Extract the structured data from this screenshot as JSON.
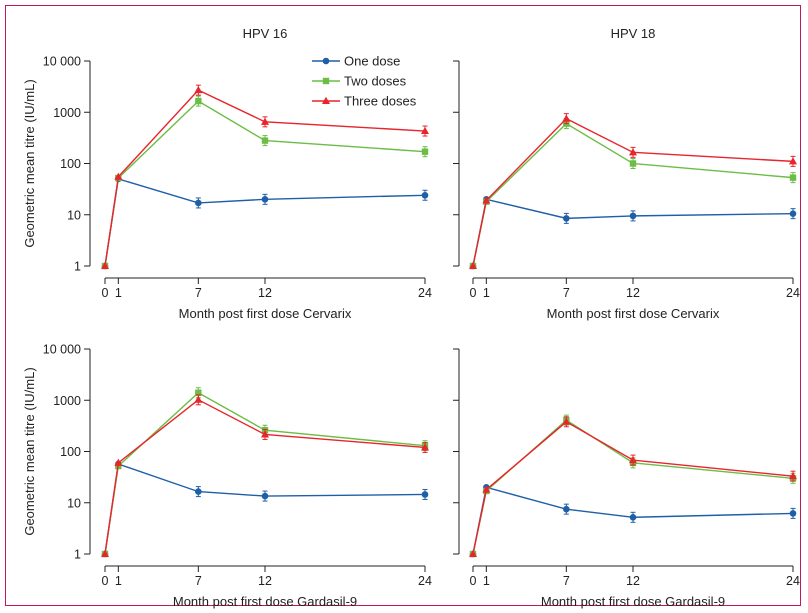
{
  "colors": {
    "one_dose": "#1f5fa8",
    "two_doses": "#6cbd45",
    "three_doses": "#e8242c",
    "frame": "#c2185b"
  },
  "legend": {
    "one": "One dose",
    "two": "Two doses",
    "three": "Three doses"
  },
  "chart_data": [
    {
      "type": "line",
      "title": "HPV 16",
      "xlabel": "Month post first dose Cervarix",
      "ylabel": "Geometric mean titre (IU/mL)",
      "y_scale": "log",
      "ylim": [
        1,
        10000
      ],
      "xlim": [
        0,
        24
      ],
      "x_ticks": [
        "0",
        "1",
        "7",
        "12",
        "24"
      ],
      "y_ticks": [
        "1",
        "10",
        "100",
        "1000",
        "10 000"
      ],
      "x": [
        0,
        1,
        7,
        12,
        24
      ],
      "legend_position": "top-right",
      "series": [
        {
          "name": "One dose",
          "marker": "circle",
          "values": [
            1,
            50,
            17,
            20,
            24
          ]
        },
        {
          "name": "Two doses",
          "marker": "square",
          "values": [
            1,
            52,
            1650,
            280,
            170
          ]
        },
        {
          "name": "Three doses",
          "marker": "triangle",
          "values": [
            1,
            55,
            2700,
            650,
            430
          ]
        }
      ]
    },
    {
      "type": "line",
      "title": "HPV 18",
      "xlabel": "Month post first dose Cervarix",
      "ylabel": "",
      "y_scale": "log",
      "ylim": [
        1,
        10000
      ],
      "xlim": [
        0,
        24
      ],
      "x_ticks": [
        "0",
        "1",
        "7",
        "12",
        "24"
      ],
      "x": [
        0,
        1,
        7,
        12,
        24
      ],
      "series": [
        {
          "name": "One dose",
          "marker": "circle",
          "values": [
            1,
            20,
            8.5,
            9.5,
            10.5
          ]
        },
        {
          "name": "Two doses",
          "marker": "square",
          "values": [
            1,
            18,
            600,
            100,
            53
          ]
        },
        {
          "name": "Three doses",
          "marker": "triangle",
          "values": [
            1,
            19,
            750,
            165,
            110
          ]
        }
      ]
    },
    {
      "type": "line",
      "title": "",
      "xlabel": "Month post first dose Gardasil-9",
      "ylabel": "Geometric mean titre (IU/mL)",
      "y_scale": "log",
      "ylim": [
        1,
        10000
      ],
      "xlim": [
        0,
        24
      ],
      "x_ticks": [
        "0",
        "1",
        "7",
        "12",
        "24"
      ],
      "y_ticks": [
        "1",
        "10",
        "100",
        "1000",
        "10 000"
      ],
      "x": [
        0,
        1,
        7,
        12,
        24
      ],
      "series": [
        {
          "name": "One dose",
          "marker": "circle",
          "values": [
            1,
            57,
            16.5,
            13.5,
            14.5
          ]
        },
        {
          "name": "Two doses",
          "marker": "square",
          "values": [
            1,
            52,
            1400,
            260,
            130
          ]
        },
        {
          "name": "Three doses",
          "marker": "triangle",
          "values": [
            1,
            60,
            1020,
            215,
            120
          ]
        }
      ]
    },
    {
      "type": "line",
      "title": "",
      "xlabel": "Month post first dose Gardasil-9",
      "ylabel": "",
      "y_scale": "log",
      "ylim": [
        1,
        10000
      ],
      "xlim": [
        0,
        24
      ],
      "x_ticks": [
        "0",
        "1",
        "7",
        "12",
        "24"
      ],
      "x": [
        0,
        1,
        7,
        12,
        24
      ],
      "series": [
        {
          "name": "One dose",
          "marker": "circle",
          "values": [
            1,
            20,
            7.5,
            5.2,
            6.2
          ]
        },
        {
          "name": "Two doses",
          "marker": "square",
          "values": [
            1,
            17,
            410,
            60,
            30
          ]
        },
        {
          "name": "Three doses",
          "marker": "triangle",
          "values": [
            1,
            18,
            380,
            68,
            33
          ]
        }
      ]
    }
  ]
}
